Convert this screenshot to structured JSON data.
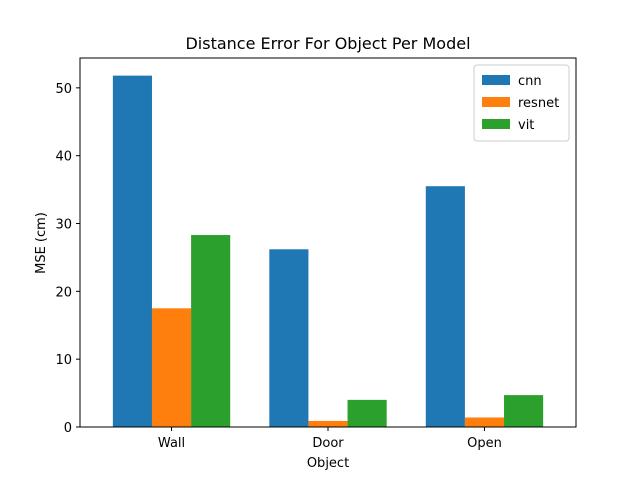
{
  "chart_data": {
    "type": "bar",
    "title": "Distance Error For Object Per Model",
    "xlabel": "Object",
    "ylabel": "MSE (cm)",
    "categories": [
      "Wall",
      "Door",
      "Open"
    ],
    "series": [
      {
        "name": "cnn",
        "values": [
          51.8,
          26.2,
          35.5
        ],
        "color": "#1f77b4"
      },
      {
        "name": "resnet",
        "values": [
          17.5,
          0.9,
          1.4
        ],
        "color": "#ff7f0e"
      },
      {
        "name": "vit",
        "values": [
          28.3,
          4.0,
          4.7
        ],
        "color": "#2ca02c"
      }
    ],
    "ylim": [
      0,
      54.4
    ],
    "yticks": [
      0,
      10,
      20,
      30,
      40,
      50
    ],
    "grid": false,
    "legend": "top-right"
  }
}
